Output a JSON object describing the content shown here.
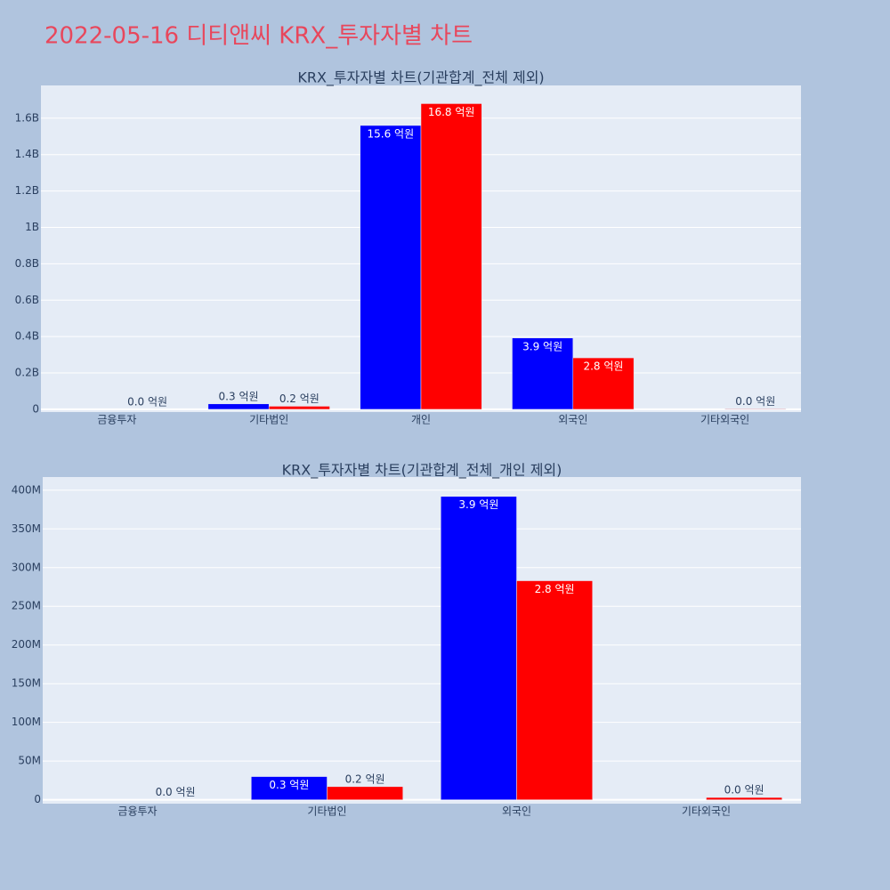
{
  "title": "2022-05-16 디티앤씨 KRX_투자자별 차트",
  "chart_data": [
    {
      "type": "bar",
      "title": "KRX_투자자별 차트(기관합계_전체 제외)",
      "categories": [
        "금융투자",
        "기타법인",
        "개인",
        "외국인",
        "기타외국인"
      ],
      "series": [
        {
          "color": "#0000ff",
          "values": [
            null,
            30000000,
            1560000000,
            392000000,
            null
          ],
          "value_labels": [
            null,
            "0.3 억원",
            "15.6 억원",
            "3.9 억원",
            null
          ]
        },
        {
          "color": "#ff0000",
          "values": [
            0,
            17000000,
            1680000000,
            283000000,
            3000000
          ],
          "value_labels": [
            "0.0 억원",
            "0.2 억원",
            "16.8 억원",
            "2.8 억원",
            "0.0 억원"
          ]
        }
      ],
      "ylim": [
        -15000000,
        1780000000
      ],
      "yticks": [
        0,
        {
          "value": 200000000,
          "label": "0.2B"
        },
        {
          "value": 400000000,
          "label": "0.4B"
        },
        {
          "value": 600000000,
          "label": "0.6B"
        },
        {
          "value": 800000000,
          "label": "0.8B"
        },
        {
          "value": 1000000000,
          "label": "1B"
        },
        {
          "value": 1200000000,
          "label": "1.2B"
        },
        {
          "value": 1400000000,
          "label": "1.4B"
        },
        {
          "value": 1600000000,
          "label": "1.6B"
        }
      ],
      "grid": true
    },
    {
      "type": "bar",
      "title": "KRX_투자자별 차트(기관합계_전체_개인 제외)",
      "categories": [
        "금융투자",
        "기타법인",
        "외국인",
        "기타외국인"
      ],
      "series": [
        {
          "color": "#0000ff",
          "values": [
            null,
            30000000,
            392000000,
            null
          ],
          "value_labels": [
            null,
            "0.3 억원",
            "3.9 억원",
            null
          ]
        },
        {
          "color": "#ff0000",
          "values": [
            0,
            17000000,
            283000000,
            3000000
          ],
          "value_labels": [
            "0.0 억원",
            "0.2 억원",
            "2.8 억원",
            "0.0 억원"
          ]
        }
      ],
      "ylim": [
        -5000000,
        417000000
      ],
      "yticks": [
        0,
        {
          "value": 50000000,
          "label": "50M"
        },
        {
          "value": 100000000,
          "label": "100M"
        },
        {
          "value": 150000000,
          "label": "150M"
        },
        {
          "value": 200000000,
          "label": "200M"
        },
        {
          "value": 250000000,
          "label": "250M"
        },
        {
          "value": 300000000,
          "label": "300M"
        },
        {
          "value": 350000000,
          "label": "350M"
        },
        {
          "value": 400000000,
          "label": "400M"
        }
      ],
      "grid": true
    }
  ]
}
